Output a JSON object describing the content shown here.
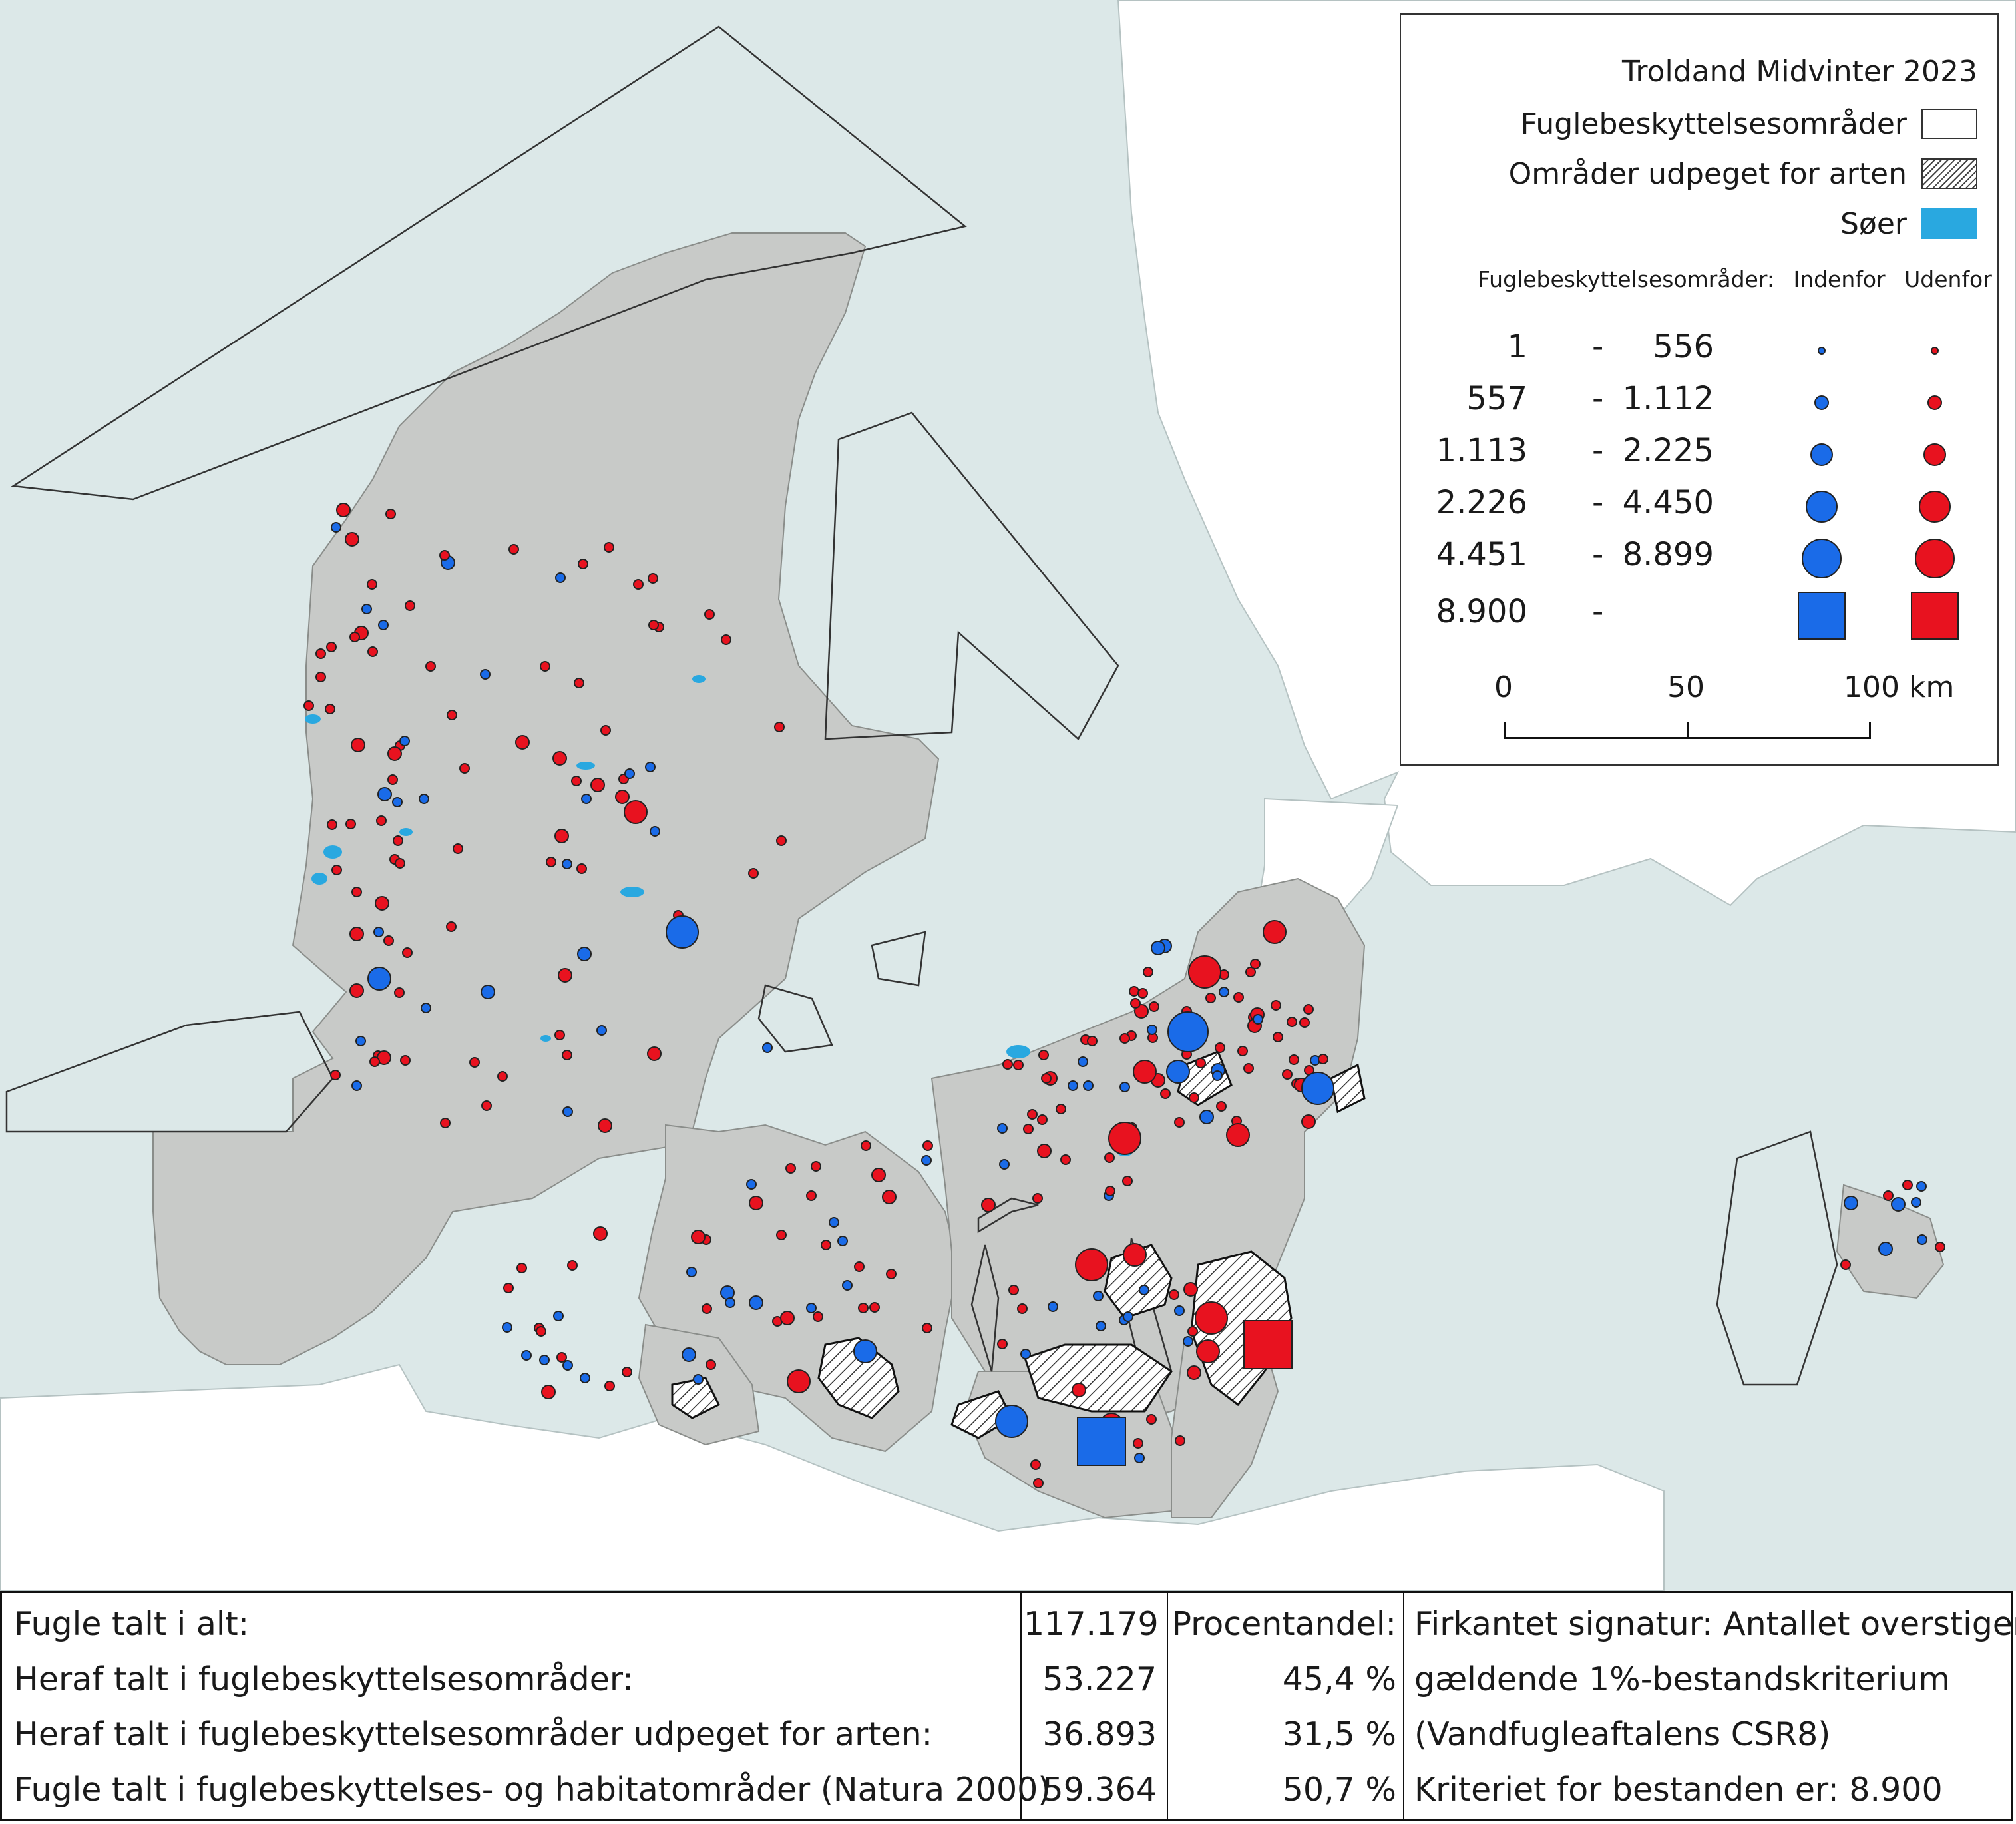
{
  "colors": {
    "sea": "#dce8e8",
    "land": "#c8cac8",
    "foreign_land": "#ffffff",
    "lakes": "#29a8e0",
    "inside": "#1a6be8",
    "outside": "#e8121f"
  },
  "legend": {
    "title": "Troldand Midvinter 2023",
    "spa_label": "Fuglebeskyttelsesområder",
    "designated_label": "Områder udpeget for arten",
    "lakes_label": "Søer",
    "columns": {
      "label": "Fuglebeskyttelsesområder:",
      "inside": "Indenfor",
      "outside": "Udenfor"
    },
    "classes": [
      {
        "lo": "1",
        "dash": "-",
        "hi": "556",
        "size": 1
      },
      {
        "lo": "557",
        "dash": "-",
        "hi": "1.112",
        "size": 2
      },
      {
        "lo": "1.113",
        "dash": "-",
        "hi": "2.225",
        "size": 3
      },
      {
        "lo": "2.226",
        "dash": "-",
        "hi": "4.450",
        "size": 4
      },
      {
        "lo": "4.451",
        "dash": "-",
        "hi": "8.899",
        "size": 5
      },
      {
        "lo": "8.900",
        "dash": "-",
        "hi": "",
        "size": 6
      }
    ],
    "scale": {
      "l0": "0",
      "l50": "50",
      "l100": "100 km"
    }
  },
  "stats": {
    "rows": [
      {
        "label": "Fugle talt i alt:",
        "value": "117.179",
        "pct": "Procentandel:",
        "note": "Firkantet signatur: Antallet overstiger"
      },
      {
        "label": "Heraf talt i fuglebeskyttelsesområder:",
        "value": "53.227",
        "pct": "45,4 %",
        "note": "gældende 1%-bestandskriterium"
      },
      {
        "label": "Heraf talt i fuglebeskyttelsesområder udpeget for arten:",
        "value": "36.893",
        "pct": "31,5 %",
        "note": "(Vandfugleaftalens CSR8)"
      },
      {
        "label": "Fugle talt i fuglebeskyttelses- og habitatområder (Natura 2000)",
        "value": "59.364",
        "pct": "50,7 %",
        "note": "Kriteriet for bestanden er: 8.900"
      }
    ]
  }
}
